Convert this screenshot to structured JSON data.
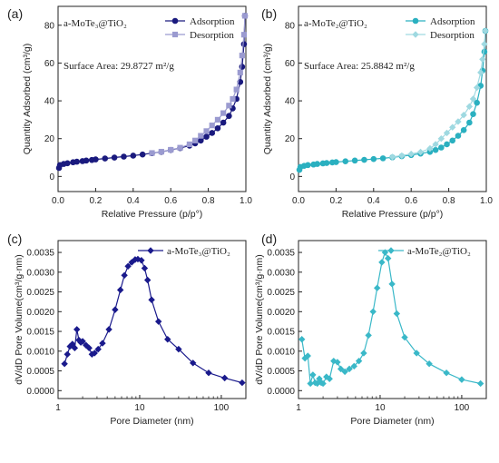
{
  "colors": {
    "adsorption_a": "#1a1a7e",
    "desorption_a": "#9b9bd0",
    "adsorption_b": "#2ab0c0",
    "desorption_b": "#9fd9e1",
    "pore_a": "#1a1a8c",
    "pore_b": "#3ab8c8"
  },
  "chart_data": [
    {
      "type": "line",
      "panel_label": "(a)",
      "sample": "a-MoTe₃@TiO₂",
      "note": "Surface Area: 29.8727 m²/g",
      "xlabel": "Relative Pressure (p/p°)",
      "ylabel": "Quantity Adsorbed (cm³/g)",
      "xlim": [
        0,
        1.0
      ],
      "ylim": [
        -8,
        90
      ],
      "xticks": [
        0.0,
        0.2,
        0.4,
        0.6,
        0.8,
        1.0
      ],
      "xtick_labels": [
        "0.0",
        "0.2",
        "0.4",
        "0.6",
        "0.8",
        "1.0"
      ],
      "yticks": [
        0,
        20,
        40,
        60,
        80
      ],
      "ytick_labels": [
        "0",
        "20",
        "40",
        "60",
        "80"
      ],
      "legend_position": "top-right",
      "series": [
        {
          "name": "Adsorption",
          "marker": "circle",
          "x": [
            0.005,
            0.01,
            0.03,
            0.05,
            0.08,
            0.1,
            0.13,
            0.15,
            0.18,
            0.2,
            0.25,
            0.3,
            0.35,
            0.4,
            0.45,
            0.5,
            0.55,
            0.6,
            0.65,
            0.7,
            0.73,
            0.76,
            0.79,
            0.82,
            0.85,
            0.88,
            0.91,
            0.93,
            0.95,
            0.97,
            0.98,
            0.99,
            0.995
          ],
          "y": [
            4.5,
            6.0,
            6.6,
            7.0,
            7.5,
            7.8,
            8.1,
            8.4,
            8.7,
            9.0,
            9.5,
            10.0,
            10.5,
            11.0,
            11.6,
            12.3,
            13.0,
            14.0,
            15.0,
            16.3,
            17.5,
            19.0,
            21.0,
            23.0,
            25.5,
            28.5,
            32.0,
            36.0,
            41.0,
            50.0,
            58.0,
            70.0,
            85.0
          ]
        },
        {
          "name": "Desorption",
          "marker": "square",
          "x": [
            0.995,
            0.99,
            0.98,
            0.97,
            0.95,
            0.93,
            0.91,
            0.88,
            0.85,
            0.82,
            0.79,
            0.76,
            0.73,
            0.7,
            0.65,
            0.6,
            0.55,
            0.5
          ],
          "y": [
            85.0,
            75.0,
            64.0,
            55.0,
            46.0,
            41.0,
            37.5,
            33.5,
            30.0,
            27.0,
            24.0,
            21.5,
            19.0,
            17.0,
            15.2,
            14.1,
            13.1,
            12.4
          ]
        }
      ]
    },
    {
      "type": "line",
      "panel_label": "(b)",
      "sample": "a-MoTe₂@TiO₂",
      "note": "Surface Area: 25.8842 m²/g",
      "xlabel": "Relative Pressure (p/p°)",
      "ylabel": "Quantity Adsorbed (cm³/g)",
      "xlim": [
        0,
        1.0
      ],
      "ylim": [
        -8,
        90
      ],
      "xticks": [
        0.0,
        0.2,
        0.4,
        0.6,
        0.8,
        1.0
      ],
      "xtick_labels": [
        "0.0",
        "0.2",
        "0.4",
        "0.6",
        "0.8",
        "1.0"
      ],
      "yticks": [
        0,
        20,
        40,
        60,
        80
      ],
      "ytick_labels": [
        "0",
        "20",
        "40",
        "60",
        "80"
      ],
      "legend_position": "top-right",
      "series": [
        {
          "name": "Adsorption",
          "marker": "circle",
          "x": [
            0.005,
            0.01,
            0.03,
            0.05,
            0.08,
            0.1,
            0.13,
            0.15,
            0.18,
            0.2,
            0.25,
            0.3,
            0.35,
            0.4,
            0.45,
            0.5,
            0.55,
            0.6,
            0.65,
            0.7,
            0.73,
            0.76,
            0.79,
            0.82,
            0.85,
            0.88,
            0.91,
            0.93,
            0.95,
            0.97,
            0.98,
            0.99,
            0.995
          ],
          "y": [
            3.5,
            5.0,
            5.6,
            6.0,
            6.3,
            6.6,
            6.9,
            7.1,
            7.4,
            7.6,
            8.0,
            8.4,
            8.8,
            9.2,
            9.6,
            10.1,
            10.7,
            11.3,
            12.1,
            13.0,
            14.0,
            15.3,
            17.0,
            19.0,
            21.5,
            24.5,
            28.5,
            33.0,
            39.0,
            48.0,
            56.0,
            66.0,
            77.0
          ]
        },
        {
          "name": "Desorption",
          "marker": "diamond",
          "x": [
            0.995,
            0.99,
            0.98,
            0.97,
            0.95,
            0.93,
            0.91,
            0.88,
            0.85,
            0.82,
            0.79,
            0.76,
            0.73,
            0.7,
            0.65,
            0.6,
            0.55,
            0.5
          ],
          "y": [
            77.0,
            70.0,
            62.0,
            55.0,
            47.0,
            41.0,
            37.0,
            32.5,
            29.0,
            26.0,
            23.0,
            20.0,
            17.0,
            14.8,
            12.9,
            11.9,
            11.0,
            10.3
          ]
        }
      ]
    },
    {
      "type": "line",
      "panel_label": "(c)",
      "xlabel": "Pore Diameter (nm)",
      "ylabel": "dV/dD Pore Volume(cm³/g·nm)",
      "xscale": "log",
      "xlim": [
        1,
        200
      ],
      "ylim": [
        -0.0002,
        0.0038
      ],
      "xticks": [
        1,
        10,
        100
      ],
      "xtick_labels": [
        "1",
        "10",
        "100"
      ],
      "yticks": [
        0.0,
        0.0005,
        0.001,
        0.0015,
        0.002,
        0.0025,
        0.003,
        0.0035
      ],
      "ytick_labels": [
        "0.0000",
        "0.0005",
        "0.0010",
        "0.0015",
        "0.0020",
        "0.0025",
        "0.0030",
        "0.0035"
      ],
      "legend_position": "top-right",
      "series": [
        {
          "name": "a-MoTe₃@TiO₂",
          "marker": "diamond",
          "x": [
            1.2,
            1.3,
            1.4,
            1.5,
            1.6,
            1.7,
            1.8,
            1.9,
            2.0,
            2.2,
            2.4,
            2.6,
            2.8,
            3.1,
            3.5,
            4.2,
            5.0,
            5.8,
            6.5,
            7.2,
            8.0,
            8.8,
            9.5,
            10.5,
            11.5,
            12.5,
            14.0,
            17.0,
            22.0,
            30.0,
            45.0,
            70.0,
            110.0,
            180.0
          ],
          "y": [
            0.00068,
            0.00092,
            0.00112,
            0.00118,
            0.00108,
            0.00155,
            0.00128,
            0.00122,
            0.00125,
            0.00115,
            0.00108,
            0.00092,
            0.00095,
            0.00105,
            0.0012,
            0.00155,
            0.00205,
            0.00255,
            0.00292,
            0.00315,
            0.00325,
            0.00332,
            0.00333,
            0.0033,
            0.0031,
            0.0028,
            0.0023,
            0.00175,
            0.0013,
            0.00105,
            0.0007,
            0.00045,
            0.00032,
            0.0002
          ]
        }
      ]
    },
    {
      "type": "line",
      "panel_label": "(d)",
      "xlabel": "Pore Diameter (nm)",
      "ylabel": "dV/dD Pore Volume(cm³/g·nm)",
      "xscale": "log",
      "xlim": [
        1,
        200
      ],
      "ylim": [
        -0.0002,
        0.0038
      ],
      "xticks": [
        1,
        10,
        100
      ],
      "xtick_labels": [
        "1",
        "10",
        "100"
      ],
      "yticks": [
        0.0,
        0.0005,
        0.001,
        0.0015,
        0.002,
        0.0025,
        0.003,
        0.0035
      ],
      "ytick_labels": [
        "0.0000",
        "0.0005",
        "0.0010",
        "0.0015",
        "0.0020",
        "0.0025",
        "0.0030",
        "0.0035"
      ],
      "legend_position": "top-right",
      "series": [
        {
          "name": "a-MoTe₂@TiO₂",
          "marker": "diamond",
          "x": [
            1.1,
            1.2,
            1.3,
            1.4,
            1.5,
            1.6,
            1.7,
            1.8,
            1.9,
            2.0,
            2.2,
            2.4,
            2.7,
            3.0,
            3.3,
            3.7,
            4.2,
            4.8,
            5.5,
            6.3,
            7.2,
            8.2,
            9.2,
            10.5,
            11.5,
            12.5,
            14.0,
            16.0,
            20.0,
            28.0,
            40.0,
            65.0,
            100.0,
            170.0
          ],
          "y": [
            0.0013,
            0.00082,
            0.00088,
            0.00018,
            0.0004,
            0.0002,
            0.00018,
            0.0003,
            0.0002,
            0.00018,
            0.00035,
            0.0003,
            0.00075,
            0.00072,
            0.00055,
            0.00048,
            0.00055,
            0.00062,
            0.00075,
            0.00095,
            0.0014,
            0.002,
            0.0026,
            0.00325,
            0.0035,
            0.00335,
            0.0027,
            0.00195,
            0.00135,
            0.00095,
            0.00068,
            0.00045,
            0.00028,
            0.00018
          ]
        }
      ]
    }
  ]
}
